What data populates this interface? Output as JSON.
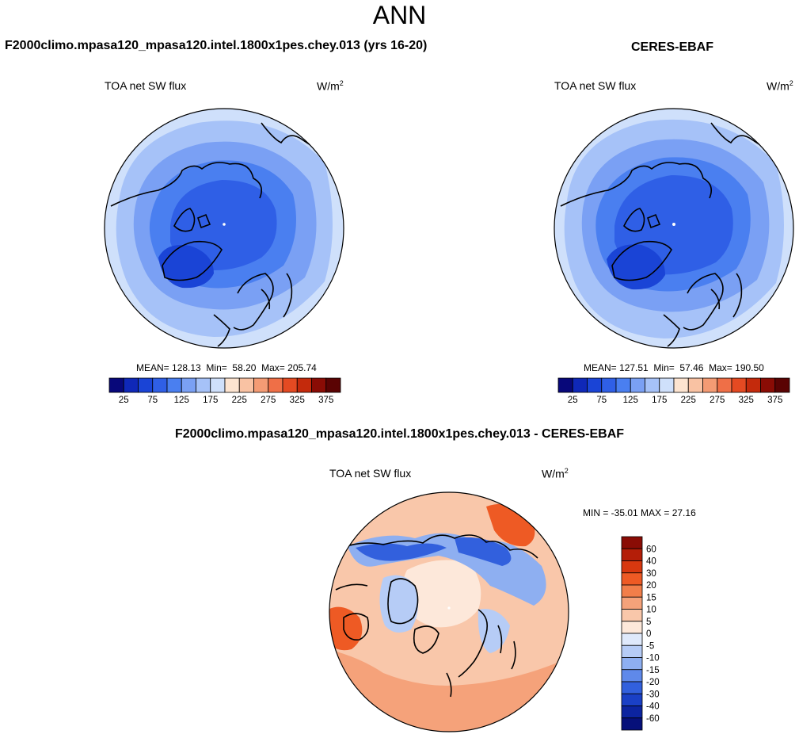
{
  "figure": {
    "season": "ANN",
    "units_base": "W/m",
    "units_exp": "2"
  },
  "panels": [
    {
      "title": "F2000climo.mpasa120_mpasa120.intel.1800x1pes.chey.013 (yrs 16-20)",
      "variable": "TOA net SW flux",
      "mean_label": "MEAN=",
      "mean": "128.13",
      "min_label": "Min=",
      "min": "58.20",
      "max_label": "Max=",
      "max": "205.74"
    },
    {
      "title": "CERES-EBAF",
      "variable": "TOA net SW flux",
      "mean_label": "MEAN=",
      "mean": "127.51",
      "min_label": "Min=",
      "min": "57.46",
      "max_label": "Max=",
      "max": "190.50"
    },
    {
      "title": "F2000climo.mpasa120_mpasa120.intel.1800x1pes.chey.013 - CERES-EBAF",
      "variable": "TOA net SW flux",
      "minmax_text": "MIN = -35.01 MAX =  27.16"
    }
  ],
  "chart_data": [
    {
      "type": "heatmap",
      "projection": "north-polar-stereographic",
      "title": "F2000climo.mpasa120_mpasa120.intel.1800x1pes.chey.013 (yrs 16-20)",
      "variable": "TOA net SW flux",
      "units": "W/m2",
      "colorbar_levels": [
        25,
        50,
        75,
        100,
        125,
        150,
        175,
        200,
        225,
        250,
        275,
        300,
        325,
        350,
        375
      ],
      "colorbar_tick_labels": [
        "25",
        "75",
        "125",
        "175",
        "225",
        "275",
        "325",
        "375"
      ],
      "colorbar_colors": [
        "#08087a",
        "#0f28b8",
        "#1a44d6",
        "#2f5fe6",
        "#4a7ff0",
        "#7aa0f4",
        "#a6c2f8",
        "#cfe0fb",
        "#fde4d0",
        "#f9c2a3",
        "#f49b74",
        "#ef6f47",
        "#e44a22",
        "#c42a0c",
        "#8a0c05",
        "#5a0303"
      ],
      "mean": 128.13,
      "min": 58.2,
      "max": 205.74
    },
    {
      "type": "heatmap",
      "projection": "north-polar-stereographic",
      "title": "CERES-EBAF",
      "variable": "TOA net SW flux",
      "units": "W/m2",
      "colorbar_levels": [
        25,
        50,
        75,
        100,
        125,
        150,
        175,
        200,
        225,
        250,
        275,
        300,
        325,
        350,
        375
      ],
      "colorbar_tick_labels": [
        "25",
        "75",
        "125",
        "175",
        "225",
        "275",
        "325",
        "375"
      ],
      "colorbar_colors": [
        "#08087a",
        "#0f28b8",
        "#1a44d6",
        "#2f5fe6",
        "#4a7ff0",
        "#7aa0f4",
        "#a6c2f8",
        "#cfe0fb",
        "#fde4d0",
        "#f9c2a3",
        "#f49b74",
        "#ef6f47",
        "#e44a22",
        "#c42a0c",
        "#8a0c05",
        "#5a0303"
      ],
      "mean": 127.51,
      "min": 57.46,
      "max": 190.5
    },
    {
      "type": "heatmap",
      "projection": "north-polar-stereographic",
      "title": "F2000climo.mpasa120_mpasa120.intel.1800x1pes.chey.013 - CERES-EBAF",
      "variable": "TOA net SW flux",
      "units": "W/m2",
      "colorbar_levels": [
        60,
        40,
        30,
        20,
        15,
        10,
        5,
        0,
        -5,
        -10,
        -15,
        -20,
        -30,
        -40,
        -60
      ],
      "colorbar_tick_labels": [
        "60",
        "40",
        "30",
        "20",
        "15",
        "10",
        "5",
        "0",
        "-5",
        "-10",
        "-15",
        "-20",
        "-30",
        "-40",
        "-60"
      ],
      "colorbar_colors": [
        "#8a0c05",
        "#b41e08",
        "#d8380f",
        "#ee5a24",
        "#f17e4a",
        "#f5a27a",
        "#f9c7aa",
        "#fde8da",
        "#dfe9fb",
        "#b6ccf6",
        "#8eaff1",
        "#5f89ea",
        "#3260dd",
        "#1a40c6",
        "#0c24a0",
        "#06107a"
      ],
      "min": -35.01,
      "max": 27.16
    }
  ]
}
